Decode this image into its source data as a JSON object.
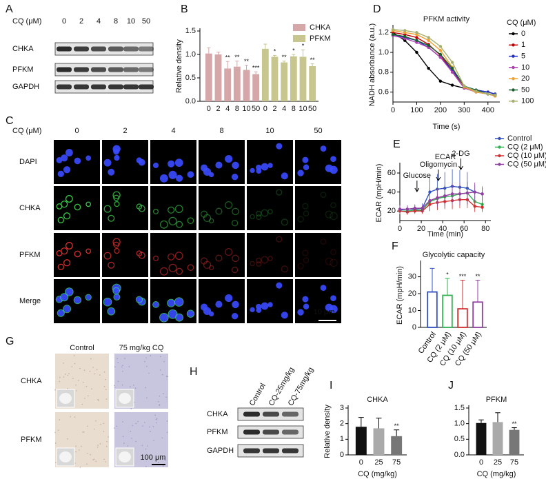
{
  "panel_labels": [
    "A",
    "B",
    "C",
    "D",
    "E",
    "F",
    "G",
    "H",
    "I",
    "J"
  ],
  "blot_a": {
    "axis_label": "CQ (μM)",
    "lanes": [
      "0",
      "2",
      "4",
      "8",
      "10",
      "50"
    ],
    "rows": [
      "CHKA",
      "PFKM",
      "GAPDH"
    ]
  },
  "imaging_c": {
    "axis_label": "CQ (μM)",
    "columns": [
      "0",
      "2",
      "4",
      "8",
      "10",
      "50"
    ],
    "rows": [
      "DAPI",
      "CHKA",
      "PFKM",
      "Merge"
    ],
    "scale_bar": "10 μm"
  },
  "ihc_g": {
    "columns": [
      "Control",
      "75 mg/kg CQ"
    ],
    "rows": [
      "CHKA",
      "PFKM"
    ],
    "scale_bar": "100 μm"
  },
  "blot_h": {
    "lanes": [
      "Control",
      "CQ-25mg/kg",
      "CQ-75mg/kg"
    ],
    "rows": [
      "CHKA",
      "PFKM",
      "GAPDH"
    ]
  },
  "chart_data": [
    {
      "type": "bar",
      "ylabel": "Relative density",
      "categories": [
        "0",
        "2",
        "4",
        "8",
        "10",
        "50"
      ],
      "series": [
        {
          "name": "CHKA",
          "color": "#d6a7a8",
          "values": [
            1.02,
            1.0,
            0.7,
            0.74,
            0.67,
            0.58
          ],
          "errors": [
            0.12,
            0.05,
            0.15,
            0.12,
            0.1,
            0.05
          ],
          "significance": [
            null,
            null,
            "**",
            "**",
            "**",
            "***"
          ]
        },
        {
          "name": "PFKM",
          "color": "#c8c68f",
          "values": [
            1.12,
            0.95,
            0.83,
            0.96,
            0.95,
            0.75
          ],
          "errors": [
            0.1,
            0.03,
            0.03,
            0.04,
            0.15,
            0.05
          ],
          "significance": [
            null,
            "*",
            "**",
            "*",
            "*",
            "**"
          ]
        }
      ],
      "ylim": [
        0,
        1.5
      ],
      "yticks": [
        {
          "value": 0,
          "label": "0.0"
        },
        0.5,
        {
          "value": 1,
          "label": "1.0"
        },
        1.5
      ],
      "legend": "top-right"
    },
    {
      "type": "line",
      "title": "PFKM activity",
      "xlabel": "Time (s)",
      "ylabel": "NADH absorbance (a.u.)",
      "legend_title": "CQ (μM)",
      "x": [
        0,
        50,
        100,
        150,
        200,
        250,
        300,
        350,
        400,
        430
      ],
      "series": [
        {
          "name": "0",
          "color": "#000000",
          "values": [
            1.2,
            1.12,
            1.0,
            0.84,
            0.71,
            0.67,
            0.64,
            0.62,
            0.6,
            0.58
          ]
        },
        {
          "name": "1",
          "color": "#c00000",
          "values": [
            1.2,
            1.18,
            1.15,
            1.08,
            0.97,
            0.82,
            0.65,
            0.62,
            0.58,
            0.56
          ]
        },
        {
          "name": "5",
          "color": "#2030c0",
          "values": [
            1.18,
            1.15,
            1.12,
            1.05,
            0.95,
            0.82,
            0.66,
            0.62,
            0.6,
            0.58
          ]
        },
        {
          "name": "10",
          "color": "#b040b0",
          "values": [
            1.17,
            1.14,
            1.1,
            1.05,
            0.95,
            0.8,
            0.64,
            0.6,
            0.58,
            0.57
          ]
        },
        {
          "name": "20",
          "color": "#f0a030",
          "values": [
            1.22,
            1.2,
            1.18,
            1.12,
            1.02,
            0.85,
            0.65,
            0.6,
            0.58,
            0.56
          ]
        },
        {
          "name": "50",
          "color": "#1a6030",
          "values": [
            1.18,
            1.16,
            1.12,
            1.07,
            0.98,
            0.84,
            0.66,
            0.62,
            0.58,
            0.57
          ]
        },
        {
          "name": "100",
          "color": "#a8b070",
          "values": [
            1.23,
            1.22,
            1.2,
            1.15,
            1.06,
            0.9,
            0.66,
            0.61,
            0.58,
            0.57
          ]
        }
      ],
      "xlim": [
        0,
        450
      ],
      "xticks": [
        0,
        100,
        200,
        300,
        400
      ],
      "ylim": [
        0.5,
        1.25
      ],
      "yticks": [
        0.6,
        0.8,
        {
          "value": 1,
          "label": "1.0"
        },
        1.2
      ]
    },
    {
      "type": "line",
      "title": "ECAR",
      "xlabel": "Time (min)",
      "ylabel": "ECAR (mpH/min)",
      "x": [
        0,
        7,
        14,
        21,
        28,
        35,
        42,
        49,
        56,
        63,
        70,
        77
      ],
      "series": [
        {
          "name": "Control",
          "color": "#3050c0",
          "values": [
            21,
            22,
            22,
            23,
            40,
            43,
            44,
            46,
            45,
            44,
            40,
            38
          ],
          "errors": [
            4,
            4,
            4,
            5,
            15,
            16,
            17,
            18,
            18,
            17,
            8,
            6
          ]
        },
        {
          "name": "CQ (2 μM)",
          "color": "#30b050",
          "values": [
            20,
            20,
            21,
            21,
            30,
            33,
            35,
            36,
            38,
            39,
            30,
            27
          ],
          "errors": [
            3,
            3,
            3,
            3,
            10,
            12,
            12,
            13,
            12,
            12,
            8,
            6
          ]
        },
        {
          "name": "CQ (10 μM)",
          "color": "#d03030",
          "values": [
            20,
            19,
            20,
            20,
            27,
            29,
            30,
            31,
            32,
            32,
            25,
            24
          ],
          "errors": [
            3,
            3,
            3,
            3,
            7,
            8,
            8,
            9,
            9,
            9,
            6,
            5
          ]
        },
        {
          "name": "CQ (50 μM)",
          "color": "#9040a0",
          "values": [
            22,
            22,
            23,
            23,
            31,
            34,
            36,
            38,
            38,
            39,
            40,
            38
          ],
          "errors": [
            4,
            4,
            4,
            4,
            9,
            10,
            11,
            11,
            12,
            12,
            10,
            8
          ]
        }
      ],
      "annotations": [
        {
          "text": "Glucose",
          "x": 16
        },
        {
          "text": "Oligomycin",
          "x": 36
        },
        {
          "text": "2-DG",
          "x": 57
        }
      ],
      "xlim": [
        0,
        85
      ],
      "xticks": [
        0,
        20,
        40,
        60,
        80
      ],
      "ylim": [
        10,
        68
      ],
      "yticks": [
        20,
        40,
        60
      ]
    },
    {
      "type": "bar",
      "title": "Glycolytic capacity",
      "ylabel": "ECAR (mpH/min)",
      "style": "outline",
      "categories": [
        "Control",
        "CQ (2 μM)",
        "CQ (10 μM)",
        "CQ (50 μM)"
      ],
      "values": [
        21,
        19,
        11,
        15
      ],
      "errors": [
        14,
        10,
        17,
        13
      ],
      "colors": [
        "#3050c0",
        "#30b050",
        "#d03030",
        "#9040a0"
      ],
      "significance": [
        null,
        "*",
        "***",
        "**"
      ],
      "ylim": [
        0,
        38
      ],
      "yticks": [
        0,
        10,
        20,
        30
      ]
    },
    {
      "type": "bar",
      "title": "CHKA",
      "ylabel": "Relative density",
      "xlabel": "CQ (mg/kg)",
      "categories": [
        "0",
        "25",
        "75"
      ],
      "values": [
        1.8,
        1.7,
        1.2
      ],
      "errors": [
        0.6,
        0.65,
        0.4
      ],
      "colors": [
        "#111111",
        "#aaaaaa",
        "#777777"
      ],
      "significance": [
        null,
        null,
        "**"
      ],
      "ylim": [
        0,
        3
      ],
      "yticks": [
        0,
        1,
        2,
        3
      ]
    },
    {
      "type": "bar",
      "title": "PFKM",
      "xlabel": "CQ (mg/kg)",
      "categories": [
        "0",
        "25",
        "75"
      ],
      "values": [
        1.02,
        1.05,
        0.8
      ],
      "errors": [
        0.1,
        0.3,
        0.07
      ],
      "colors": [
        "#111111",
        "#aaaaaa",
        "#777777"
      ],
      "significance": [
        null,
        null,
        "**"
      ],
      "ylim": [
        0,
        1.5
      ],
      "yticks": [
        {
          "value": 0,
          "label": "0.0"
        },
        0.5,
        {
          "value": 1,
          "label": "1.0"
        },
        1.5
      ]
    }
  ]
}
